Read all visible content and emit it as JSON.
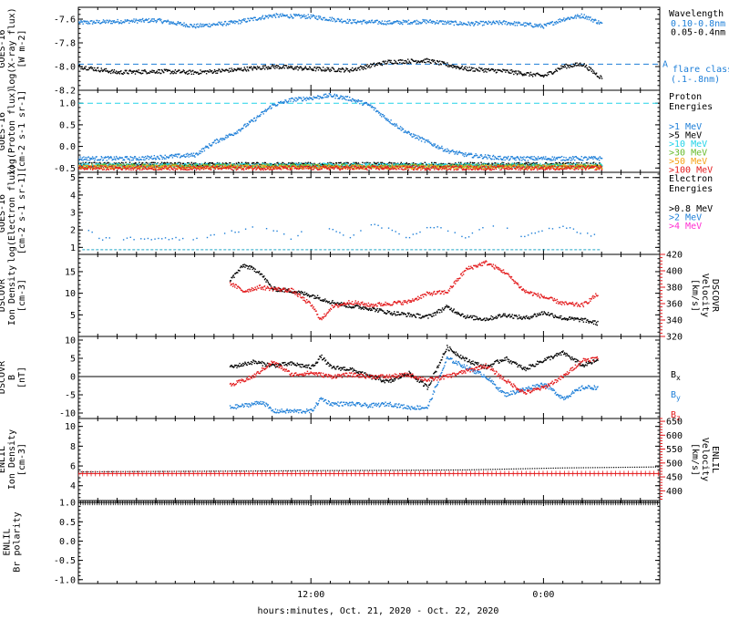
{
  "colors": {
    "black": "#000000",
    "blue": "#1e7fd8",
    "cyan": "#22d3e8",
    "green": "#66bb2a",
    "orange": "#f5a318",
    "red": "#e31a1c",
    "magenta": "#ff2fd2"
  },
  "xaxis": {
    "label": "hours:minutes, Oct. 21, 2020 - Oct. 22, 2020",
    "ticks": [
      "12:00",
      "0:00"
    ],
    "range_hours": [
      0,
      30
    ]
  },
  "chart_data": [
    {
      "id": "xray",
      "type": "scatter",
      "ylabel": [
        "GOES-16",
        "log(X-ray flux)",
        "[W m-2]"
      ],
      "ylim": [
        -8.2,
        -7.5
      ],
      "yticks": [
        "-7.6",
        "-7.8",
        "-8.0",
        "-8.2"
      ],
      "ytick_values": [
        -7.6,
        -7.8,
        -8.0,
        -8.2
      ],
      "legend_title": "Wavelength",
      "series": [
        {
          "name": "0.10-0.8nm",
          "color": "#1e7fd8",
          "x": [
            0,
            2,
            4,
            6,
            8,
            10,
            12,
            14,
            16,
            18,
            20,
            22,
            24,
            25,
            26,
            27
          ],
          "y": [
            -7.63,
            -7.62,
            -7.61,
            -7.66,
            -7.63,
            -7.57,
            -7.58,
            -7.62,
            -7.63,
            -7.62,
            -7.64,
            -7.63,
            -7.66,
            -7.6,
            -7.57,
            -7.64
          ]
        },
        {
          "name": "0.05-0.4nm",
          "color": "#000000",
          "x": [
            0,
            2,
            4,
            6,
            8,
            10,
            12,
            14,
            16,
            18,
            20,
            22,
            24,
            25,
            26,
            27
          ],
          "y": [
            -8.0,
            -8.05,
            -8.04,
            -8.05,
            -8.03,
            -8.0,
            -8.02,
            -8.03,
            -7.96,
            -7.95,
            -8.02,
            -8.04,
            -8.08,
            -8.0,
            -7.98,
            -8.1
          ]
        }
      ],
      "threshold": {
        "value": -7.98,
        "label": "A",
        "color": "#1e7fd8"
      },
      "notes": [
        "flare class",
        "(.1-.8nm)"
      ]
    },
    {
      "id": "proton",
      "type": "scatter",
      "ylabel": [
        "GOES-16",
        "log(Proton flux)",
        "[cm-2 s-1 sr-1]"
      ],
      "ylim": [
        -0.6,
        1.3
      ],
      "yticks": [
        "1.0",
        "0.5",
        "0.0",
        "-0.5"
      ],
      "ytick_values": [
        1.0,
        0.5,
        0.0,
        -0.5
      ],
      "legend_title": [
        "Proton",
        "Energies"
      ],
      "threshold": {
        "value": 1.0,
        "color": "#22d3e8"
      },
      "series": [
        {
          "name": ">1 MeV",
          "color": "#1e7fd8",
          "x": [
            0,
            3,
            6,
            6.5,
            7,
            8,
            9,
            10,
            11,
            12,
            13,
            14,
            15,
            16,
            17,
            18,
            19,
            20,
            22,
            25,
            27
          ],
          "y": [
            -0.28,
            -0.28,
            -0.2,
            -0.05,
            0.1,
            0.3,
            0.6,
            0.95,
            1.08,
            1.12,
            1.18,
            1.1,
            0.95,
            0.6,
            0.3,
            0.1,
            -0.1,
            -0.2,
            -0.28,
            -0.28,
            -0.28
          ]
        },
        {
          "name": ">5 MeV",
          "color": "#000000",
          "x": [
            0,
            27
          ],
          "y": [
            -0.42,
            -0.42
          ]
        },
        {
          "name": ">10 MeV",
          "color": "#22d3e8",
          "x": [
            0,
            27
          ],
          "y": [
            -0.44,
            -0.44
          ]
        },
        {
          "name": ">30 MeV",
          "color": "#66bb2a",
          "x": [
            0,
            27
          ],
          "y": [
            -0.46,
            -0.46
          ]
        },
        {
          "name": ">50 MeV",
          "color": "#f5a318",
          "x": [
            0,
            27
          ],
          "y": [
            -0.48,
            -0.48
          ]
        },
        {
          "name": ">100 MeV",
          "color": "#e31a1c",
          "x": [
            0,
            27
          ],
          "y": [
            -0.5,
            -0.5
          ]
        }
      ]
    },
    {
      "id": "electron",
      "type": "scatter",
      "ylabel": [
        "GOES-16",
        "log(Electron flux)",
        "[cm-2 s-1 sr-1]"
      ],
      "ylim": [
        0.6,
        5.3
      ],
      "yticks": [
        "5",
        "4",
        "3",
        "2",
        "1"
      ],
      "ytick_values": [
        5,
        4,
        3,
        2,
        1
      ],
      "legend_title": [
        "Electron",
        "Energies"
      ],
      "threshold": {
        "value": 5.0,
        "color": "#000000"
      },
      "series": [
        {
          "name": ">0.8 MeV",
          "color": "#000000",
          "x": [],
          "y": []
        },
        {
          "name": ">2 MeV",
          "color": "#1e7fd8",
          "x": [
            0.5,
            1,
            5,
            6,
            9,
            10,
            11,
            12,
            13,
            14,
            15,
            16,
            17,
            18,
            19,
            20,
            21,
            22,
            23,
            24,
            25,
            26,
            27
          ],
          "y": [
            2.0,
            1.5,
            1.5,
            1.5,
            2.1,
            2.0,
            1.5,
            2.2,
            2.1,
            1.6,
            2.3,
            2.1,
            1.5,
            2.2,
            2.0,
            1.6,
            2.2,
            2.1,
            1.6,
            2.0,
            2.2,
            1.8,
            1.6
          ]
        },
        {
          "name": ">4 MeV",
          "color": "#ff2fd2",
          "x": [],
          "y": []
        }
      ],
      "baseline": {
        "value": 0.87,
        "color": "#22a8c8"
      }
    },
    {
      "id": "dscovr_density",
      "type": "line",
      "ylabel": [
        "DSCOVR",
        "Ion Density",
        "[cm-3]"
      ],
      "ylim": [
        0,
        19
      ],
      "yticks": [
        "15",
        "10",
        "5"
      ],
      "ytick_values": [
        15,
        10,
        5
      ],
      "ylabel_right": [
        "DSCOVR",
        "Velocity",
        "[km/s]"
      ],
      "ylim_right": [
        320,
        420
      ],
      "yticks_right": [
        "420",
        "400",
        "380",
        "360",
        "340",
        "320"
      ],
      "ytick_values_right": [
        420,
        400,
        380,
        360,
        340,
        320
      ],
      "series": [
        {
          "name": "Ion Density",
          "color": "#000000",
          "axis": "left",
          "x": [
            7.8,
            8.5,
            9.3,
            10,
            11,
            12,
            13,
            14,
            15,
            16,
            17,
            18,
            19,
            20,
            21,
            22,
            23,
            24,
            25,
            26,
            26.8
          ],
          "y": [
            13,
            16.5,
            15,
            11,
            10.5,
            9.5,
            8,
            7,
            6.5,
            5.5,
            5.0,
            4.5,
            6.8,
            4.5,
            4.0,
            5.0,
            4.2,
            5.5,
            4.2,
            3.8,
            3.0
          ]
        },
        {
          "name": "Velocity",
          "color": "#e31a1c",
          "axis": "right",
          "x": [
            7.8,
            8.5,
            9.3,
            10,
            11,
            12,
            12.5,
            13,
            14,
            15,
            16,
            17,
            18,
            19,
            20,
            21,
            22,
            23,
            24,
            25,
            26,
            26.8
          ],
          "y": [
            385,
            375,
            380,
            378,
            376,
            358,
            340,
            355,
            362,
            358,
            360,
            362,
            372,
            374,
            402,
            410,
            398,
            375,
            368,
            360,
            358,
            372
          ]
        }
      ]
    },
    {
      "id": "dscovr_b",
      "type": "line",
      "ylabel": [
        "DSCOVR",
        "B",
        "[nT]"
      ],
      "ylim": [
        -11.5,
        11
      ],
      "yticks": [
        "10",
        "5",
        "0",
        "-5",
        "-10"
      ],
      "ytick_values": [
        10,
        5,
        0,
        -5,
        -10
      ],
      "zero_line": true,
      "series": [
        {
          "name": "Bx",
          "color": "#000000",
          "x": [
            7.8,
            9,
            10,
            11,
            12,
            12.5,
            13,
            14,
            15,
            16,
            17,
            18,
            19,
            20,
            21,
            22,
            23,
            24,
            25,
            26,
            26.8
          ],
          "y": [
            2.5,
            4.0,
            3.0,
            3.5,
            2.5,
            5.5,
            2.5,
            2.0,
            0,
            -1.5,
            1.0,
            -3.0,
            8.0,
            4.5,
            2.5,
            5.0,
            2.0,
            4.5,
            6.5,
            3.0,
            4.5
          ]
        },
        {
          "name": "By",
          "color": "#1e7fd8",
          "x": [
            7.8,
            8.5,
            9.5,
            10,
            12,
            12.5,
            13,
            14,
            15,
            16,
            17,
            18,
            19,
            20,
            21,
            22,
            23,
            24,
            25,
            26,
            26.8
          ],
          "y": [
            -8.5,
            -8.0,
            -7.0,
            -9.5,
            -9.5,
            -6.0,
            -7.5,
            -7.5,
            -8.0,
            -7.5,
            -8.5,
            -8.5,
            5.0,
            2.5,
            0,
            -5.0,
            -3.5,
            -2.0,
            -6.0,
            -3.0,
            -3.0
          ]
        },
        {
          "name": "Bz",
          "color": "#e31a1c",
          "x": [
            7.8,
            9,
            10,
            11,
            12,
            13,
            14,
            15,
            16,
            17,
            18,
            19,
            20,
            21,
            22,
            23,
            24,
            25,
            26,
            26.8
          ],
          "y": [
            -2.5,
            0,
            4.0,
            0.5,
            1.0,
            0,
            0.5,
            0,
            0,
            0.5,
            -1.0,
            0,
            1.5,
            3.0,
            -1.0,
            -4.5,
            -3.0,
            0,
            4.5,
            5.0
          ]
        }
      ]
    },
    {
      "id": "enlil_density",
      "type": "line",
      "ylabel": [
        "ENLIL",
        "Ion Density",
        "[cm-3]"
      ],
      "ylim": [
        2.5,
        10.8
      ],
      "yticks": [
        "10",
        "8",
        "6",
        "4"
      ],
      "ytick_values": [
        10,
        8,
        6,
        4
      ],
      "ylabel_right": [
        "ENLIL",
        "Velocity",
        "[km/s]"
      ],
      "ylim_right": [
        365,
        660
      ],
      "yticks_right": [
        "650",
        "600",
        "550",
        "500",
        "450",
        "400"
      ],
      "ytick_values_right": [
        650,
        600,
        550,
        500,
        450,
        400
      ],
      "series": [
        {
          "name": "Ion Density",
          "color": "#000000",
          "axis": "left",
          "x": [
            0,
            10,
            20,
            25,
            30
          ],
          "y": [
            5.4,
            5.5,
            5.6,
            5.8,
            5.9
          ]
        },
        {
          "name": "Velocity",
          "color": "#e31a1c",
          "axis": "right",
          "x": [
            0,
            10,
            20,
            25,
            30
          ],
          "y": [
            462,
            462,
            462,
            462,
            462
          ]
        }
      ]
    },
    {
      "id": "enlil_polarity",
      "type": "line",
      "ylabel": [
        "ENLIL",
        "Br polarity"
      ],
      "ylim": [
        -1.1,
        1.05
      ],
      "yticks": [
        "1.0",
        "0.5",
        "0.0",
        "-0.5",
        "-1.0"
      ],
      "ytick_values": [
        1.0,
        0.5,
        0.0,
        -0.5,
        -1.0
      ],
      "series": [
        {
          "name": "Br polarity",
          "color": "#000000",
          "x": [
            0,
            30
          ],
          "y": [
            1.0,
            1.0
          ]
        }
      ]
    }
  ]
}
